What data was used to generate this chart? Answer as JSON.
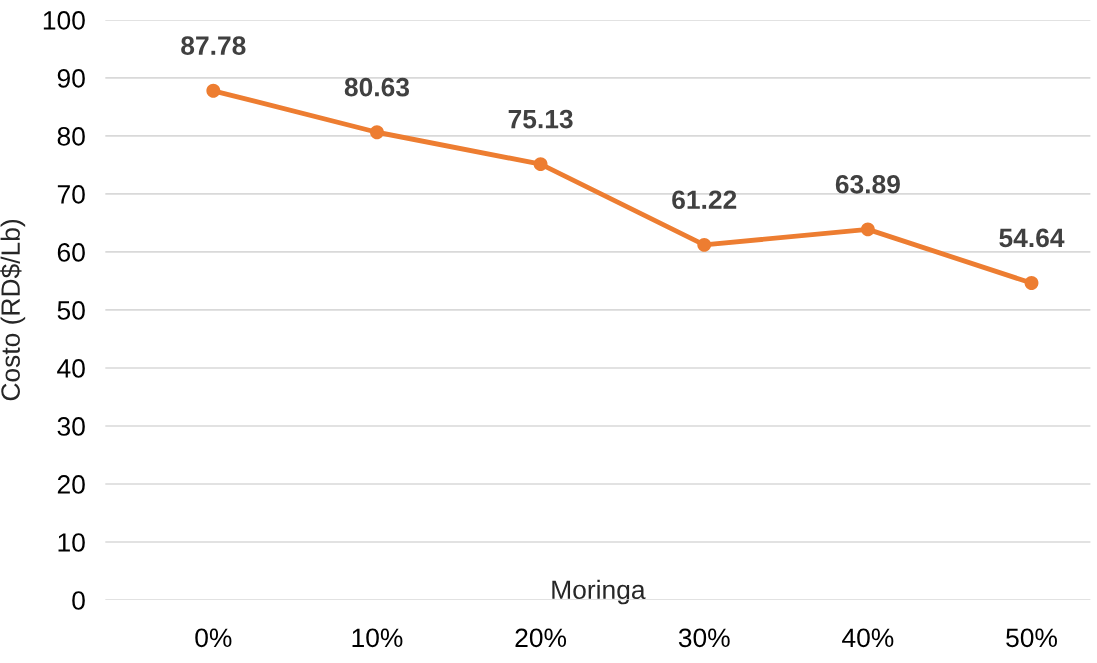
{
  "chart_data": {
    "type": "line",
    "xlabel": "Moringa",
    "ylabel": "Costo (RD$/Lb)",
    "categories": [
      "0%",
      "10%",
      "20%",
      "30%",
      "40%",
      "50%"
    ],
    "series": [
      {
        "color": "#ed7d31",
        "values": [
          87.78,
          80.63,
          75.13,
          61.22,
          63.89,
          54.64
        ]
      }
    ],
    "ylim": [
      0,
      100
    ],
    "yticks": [
      0,
      10,
      20,
      30,
      40,
      50,
      60,
      70,
      80,
      90,
      100
    ],
    "grid": "y",
    "marker": "circle",
    "line_style": "solid",
    "data_labels": true
  }
}
